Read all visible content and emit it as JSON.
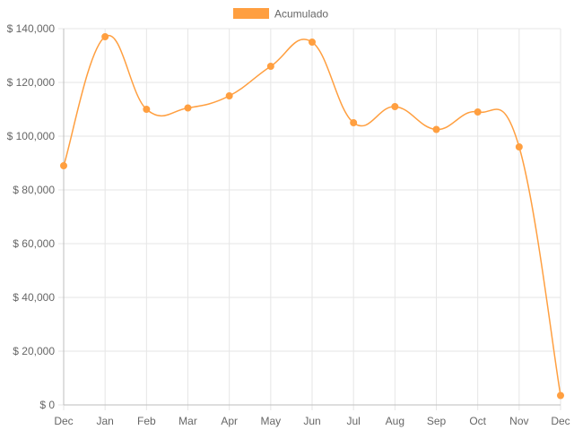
{
  "chart_data": {
    "type": "line",
    "categories": [
      "Dec",
      "Jan",
      "Feb",
      "Mar",
      "Apr",
      "May",
      "Jun",
      "Jul",
      "Aug",
      "Sep",
      "Oct",
      "Nov",
      "Dec"
    ],
    "series": [
      {
        "name": "Acumulado",
        "color": "#ff9f40",
        "values": [
          89000,
          137000,
          110000,
          110500,
          115000,
          126000,
          135000,
          105000,
          111000,
          102500,
          109000,
          96000,
          3500
        ]
      }
    ],
    "ylim": [
      0,
      140000
    ],
    "yticks": [
      0,
      20000,
      40000,
      60000,
      80000,
      100000,
      120000,
      140000
    ],
    "ytick_labels": [
      "$ 0",
      "$ 20,000",
      "$ 40,000",
      "$ 60,000",
      "$ 80,000",
      "$ 100,000",
      "$ 120,000",
      "$ 140,000"
    ],
    "grid": true,
    "legend_position": "top-center",
    "curve": "smooth",
    "title": "",
    "xlabel": "",
    "ylabel": ""
  }
}
